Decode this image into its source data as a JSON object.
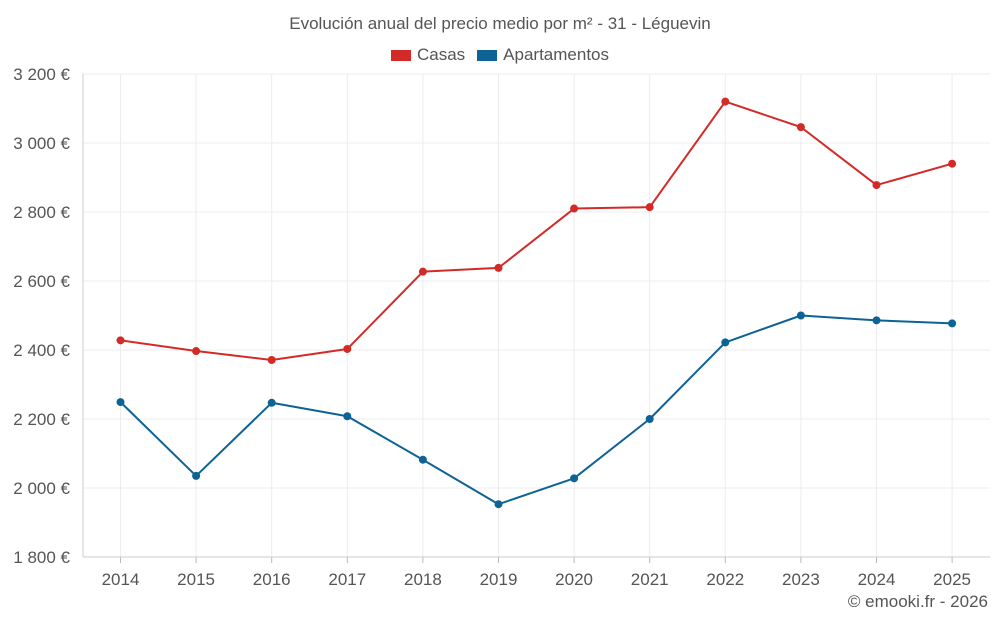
{
  "chart_data": {
    "type": "line",
    "title": "Evolución anual del precio medio por m² - 31 - Léguevin",
    "categories": [
      "2014",
      "2015",
      "2016",
      "2017",
      "2018",
      "2019",
      "2020",
      "2021",
      "2022",
      "2023",
      "2024",
      "2025"
    ],
    "series": [
      {
        "name": "Casas",
        "color": "#d42a27",
        "values": [
          2428,
          2397,
          2371,
          2403,
          2627,
          2638,
          2810,
          2814,
          3120,
          3046,
          2878,
          2940
        ]
      },
      {
        "name": "Apartamentos",
        "color": "#0d6396",
        "values": [
          2249,
          2035,
          2247,
          2208,
          2082,
          1953,
          2028,
          2200,
          2422,
          2500,
          2486,
          2477
        ]
      }
    ],
    "ylim": [
      1800,
      3200
    ],
    "yticks": [
      1800,
      2000,
      2200,
      2400,
      2600,
      2800,
      3000,
      3200
    ],
    "ytick_labels": [
      "1 800 €",
      "2 000 €",
      "2 200 €",
      "2 400 €",
      "2 600 €",
      "2 800 €",
      "3 000 €",
      "3 200 €"
    ],
    "xlabel": "",
    "ylabel": "",
    "grid": true,
    "legend_position": "top-center"
  },
  "footer": {
    "credit": "© emooki.fr - 2026"
  }
}
